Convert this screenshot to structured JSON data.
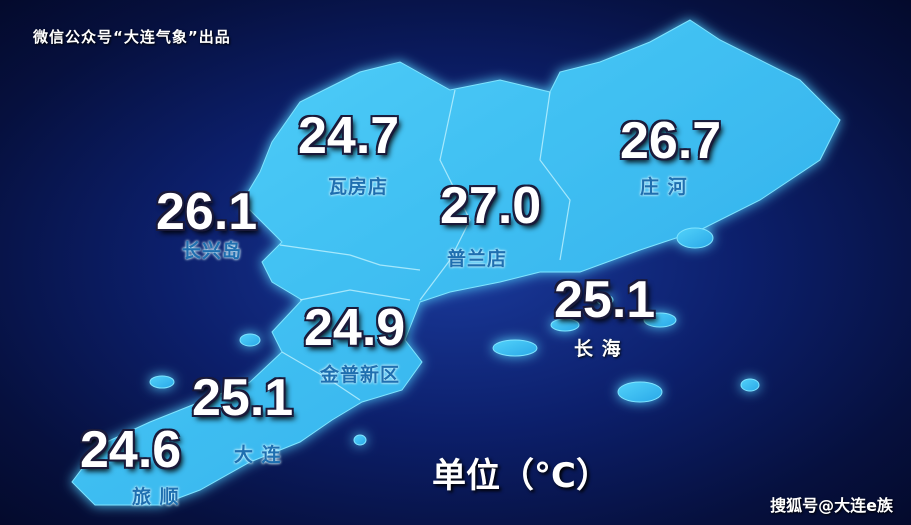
{
  "credit": "微信公众号“大连气象”出品",
  "watermark": "搜狐号@大连e族",
  "unit_label": "单位（°C）",
  "land_color": "#3fc4f4",
  "stations": [
    {
      "name": "瓦房店",
      "temp": "24.7"
    },
    {
      "name": "长兴岛",
      "temp": "26.1"
    },
    {
      "name": "普兰店",
      "temp": "27.0"
    },
    {
      "name": "庄 河",
      "temp": "26.7"
    },
    {
      "name": "长 海",
      "temp": "25.1"
    },
    {
      "name": "金普新区",
      "temp": "24.9"
    },
    {
      "name": "大 连",
      "temp": "25.1"
    },
    {
      "name": "旅 顺",
      "temp": "24.6"
    }
  ]
}
